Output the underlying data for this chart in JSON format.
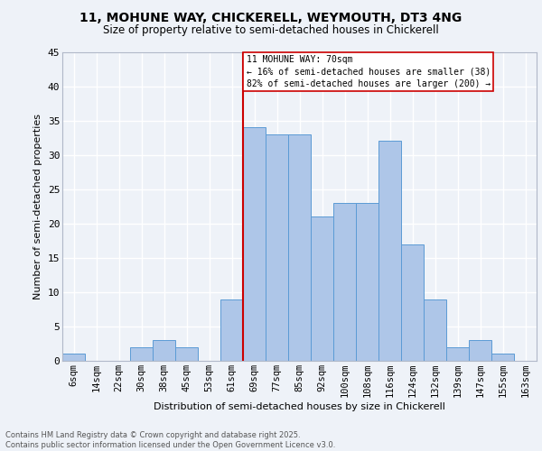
{
  "title_line1": "11, MOHUNE WAY, CHICKERELL, WEYMOUTH, DT3 4NG",
  "title_line2": "Size of property relative to semi-detached houses in Chickerell",
  "xlabel": "Distribution of semi-detached houses by size in Chickerell",
  "ylabel": "Number of semi-detached properties",
  "footer": "Contains HM Land Registry data © Crown copyright and database right 2025.\nContains public sector information licensed under the Open Government Licence v3.0.",
  "categories": [
    "6sqm",
    "14sqm",
    "22sqm",
    "30sqm",
    "38sqm",
    "45sqm",
    "53sqm",
    "61sqm",
    "69sqm",
    "77sqm",
    "85sqm",
    "92sqm",
    "100sqm",
    "108sqm",
    "116sqm",
    "124sqm",
    "132sqm",
    "139sqm",
    "147sqm",
    "155sqm",
    "163sqm"
  ],
  "values": [
    1,
    0,
    0,
    2,
    3,
    2,
    0,
    9,
    34,
    33,
    33,
    21,
    23,
    23,
    32,
    17,
    9,
    2,
    3,
    1,
    0
  ],
  "bar_color": "#aec6e8",
  "bar_edge_color": "#5b9bd5",
  "property_line_idx": 8,
  "property_size": "70sqm",
  "pct_smaller": 16,
  "pct_larger": 82,
  "n_smaller": 38,
  "n_larger": 200,
  "annotation_box_color": "#ffffff",
  "annotation_box_edge": "#cc0000",
  "vline_color": "#cc0000",
  "ylim": [
    0,
    45
  ],
  "yticks": [
    0,
    5,
    10,
    15,
    20,
    25,
    30,
    35,
    40,
    45
  ],
  "bg_color": "#eef2f8",
  "grid_color": "#ffffff"
}
